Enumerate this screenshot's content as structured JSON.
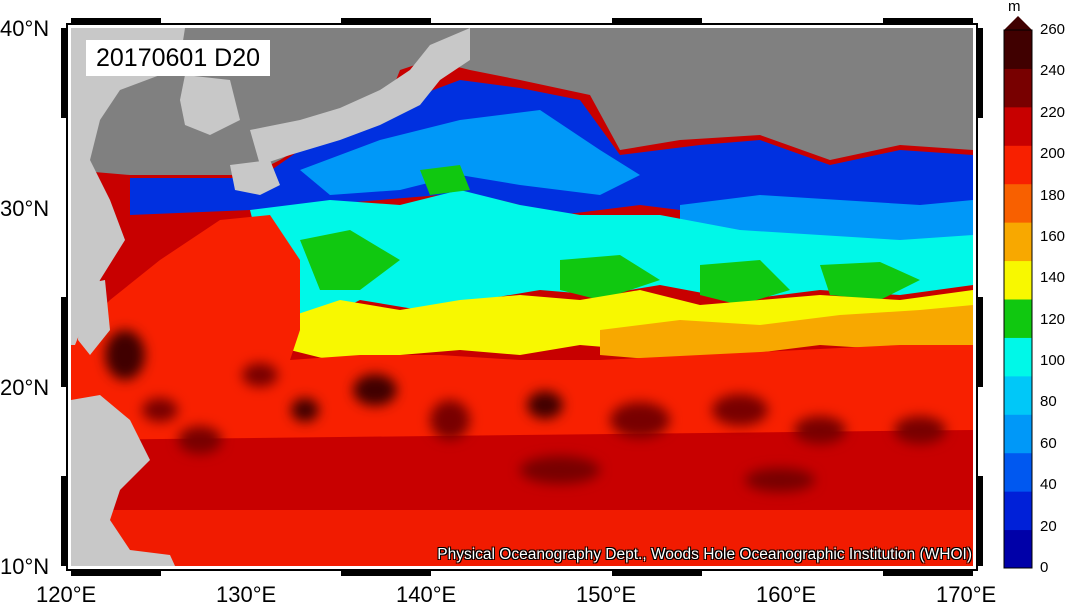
{
  "title": "20170601 D20",
  "credit": "Physical Oceanography Dept., Woods Hole Oceanographic Institution (WHOI)",
  "units": "m",
  "lon_labels": [
    "120°E",
    "130°E",
    "140°E",
    "150°E",
    "160°E",
    "170°E"
  ],
  "lat_labels": [
    "40°N",
    "30°N",
    "20°N",
    "10°N"
  ],
  "colorbar": {
    "ticks": [
      "260",
      "240",
      "220",
      "200",
      "180",
      "160",
      "140",
      "120",
      "100",
      "80",
      "60",
      "40",
      "20",
      "0"
    ],
    "colors_bottom_to_top": [
      "#0000a8",
      "#0020d8",
      "#0058f0",
      "#0098f8",
      "#00c8f8",
      "#00f8e8",
      "#10c810",
      "#f8f800",
      "#f8a800",
      "#f86000",
      "#f82000",
      "#c80000",
      "#780000",
      "#400000"
    ]
  },
  "colors": {
    "land": "#c8c8c8",
    "nodata": "#808080"
  }
}
